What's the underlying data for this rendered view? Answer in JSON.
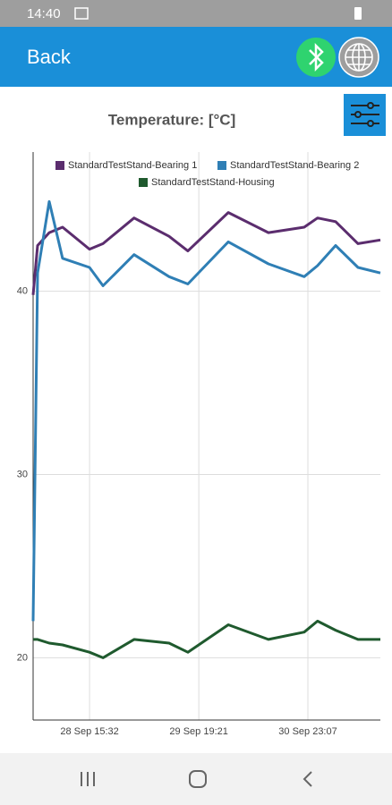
{
  "status_bar": {
    "time": "14:40"
  },
  "app_bar": {
    "back": "Back"
  },
  "chart_data": {
    "type": "line",
    "title": "Temperature: [°C]",
    "x": [
      "28 Sep 01:10",
      "28 Sep 02:18",
      "28 Sep 05:16",
      "28 Sep 08:40",
      "28 Sep 15:31",
      "28 Sep 18:58",
      "29 Sep 02:52",
      "29 Sep 11:46",
      "29 Sep 16:34",
      "30 Sep 02:52",
      "30 Sep 13:04",
      "30 Sep 22:10",
      "1 Oct 01:34",
      "1 Oct 06:10",
      "1 Oct 11:52",
      "1 Oct 17:34"
    ],
    "series": [
      {
        "name": "StandardTestStand-Bearing 1",
        "color": "#5b2d6e",
        "values": [
          39.8,
          42.5,
          43.2,
          43.5,
          42.3,
          42.6,
          44.0,
          43.0,
          42.2,
          44.3,
          43.2,
          43.5,
          44.0,
          43.8,
          42.6,
          42.8
        ]
      },
      {
        "name": "StandardTestStand-Bearing 2",
        "color": "#2f7fb5",
        "values": [
          22,
          41,
          44.9,
          41.8,
          41.3,
          40.3,
          42.0,
          40.8,
          40.4,
          42.7,
          41.5,
          40.8,
          41.4,
          42.5,
          41.3,
          41.0
        ]
      },
      {
        "name": "StandardTestStand-Housing",
        "color": "#1f5a2e",
        "values": [
          21,
          21,
          20.8,
          20.7,
          20.3,
          20.0,
          21.0,
          20.8,
          20.3,
          21.8,
          21.0,
          21.4,
          22.0,
          21.5,
          21.0,
          21.0
        ]
      }
    ],
    "xlim": [
      "28 Sep 01:10",
      "1 Oct 17:34"
    ],
    "xticks": [
      "28 Sep 15:32",
      "29 Sep 19:21",
      "30 Sep 23:07"
    ],
    "ylim": [
      16.6,
      47.6
    ],
    "yticks": [
      20,
      30,
      40
    ],
    "grid": true
  }
}
